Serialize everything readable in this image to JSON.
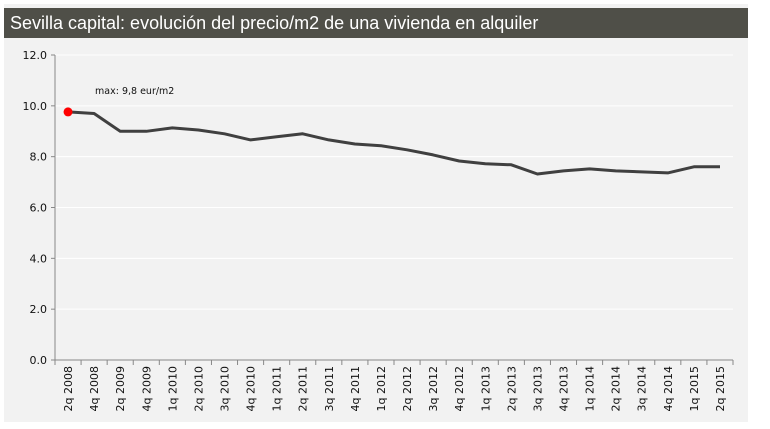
{
  "chart_data": {
    "type": "line",
    "title": "Sevilla capital: evolución del precio/m2 de una vivienda en alquiler",
    "xlabel": "",
    "ylabel": "",
    "categories": [
      "2q 2008",
      "4q 2008",
      "2q 2009",
      "4q 2009",
      "1q 2010",
      "2q 2010",
      "3q 2010",
      "4q 2010",
      "1q 2011",
      "2q 2011",
      "3q 2011",
      "4q 2011",
      "1q 2012",
      "2q 2012",
      "3q 2012",
      "4q 2012",
      "1q 2013",
      "2q 2013",
      "3q 2013",
      "4q 2013",
      "1q 2014",
      "2q 2014",
      "3q 2014",
      "4q 2014",
      "1q 2015",
      "2q 2015"
    ],
    "values": [
      9.76,
      9.7,
      9.0,
      9.0,
      9.13,
      9.05,
      8.9,
      8.66,
      8.78,
      8.9,
      8.66,
      8.5,
      8.43,
      8.27,
      8.07,
      7.83,
      7.72,
      7.68,
      7.32,
      7.44,
      7.52,
      7.44,
      7.4,
      7.36,
      7.6,
      7.6
    ],
    "ylim": [
      0,
      12
    ],
    "yticks": [
      "0.0",
      "2.0",
      "4.0",
      "6.0",
      "8.0",
      "10.0",
      "12.0"
    ],
    "grid": true,
    "annotation": "max: 9,8 eur/m2",
    "colors": {
      "line": "#404040",
      "max_marker": "#ff0000",
      "title_bar": "#4f4f48",
      "background": "#f2f2f2"
    }
  }
}
